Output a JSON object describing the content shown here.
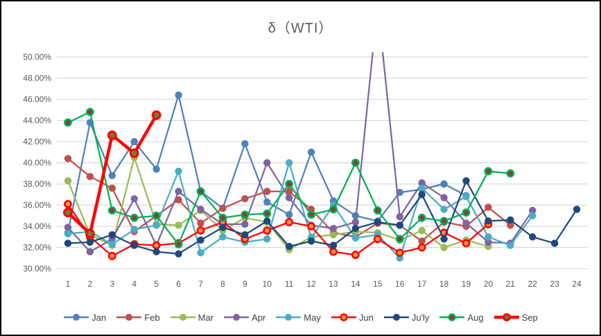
{
  "window": {
    "background": "#FFFFFF",
    "frame_border": "#000000"
  },
  "chart_data": {
    "type": "line",
    "title": "δ（WTI）",
    "xlabel": "",
    "ylabel": "",
    "ylim": [
      30,
      50
    ],
    "grid": true,
    "grid_color": "#D9D9D9",
    "axis_text_color": "#595959",
    "legend_position": "bottom",
    "x_ticks": [
      1,
      2,
      3,
      4,
      5,
      6,
      7,
      8,
      9,
      10,
      11,
      12,
      13,
      14,
      15,
      16,
      17,
      18,
      19,
      20,
      21,
      22,
      23,
      24
    ],
    "y_ticks": [
      "50.00%",
      "48.00%",
      "46.00%",
      "44.00%",
      "42.00%",
      "40.00%",
      "38.00%",
      "36.00%",
      "34.00%",
      "32.00%",
      "30.00%"
    ],
    "y_tick_values": [
      50,
      48,
      46,
      44,
      42,
      40,
      38,
      36,
      34,
      32,
      30
    ],
    "series": [
      {
        "name": "Jan",
        "color": "#4F81BD",
        "values": [
          33.4,
          43.8,
          38.8,
          42.0,
          39.4,
          46.4,
          37.3,
          35.7,
          41.8,
          36.3,
          35.1,
          41.0,
          36.4,
          35.0,
          34.5,
          37.2,
          37.5,
          38.0,
          36.9,
          null,
          null,
          null,
          null,
          null
        ]
      },
      {
        "name": "Feb",
        "color": "#C0504D",
        "values": [
          40.4,
          38.7,
          37.6,
          33.5,
          35.0,
          36.5,
          34.3,
          35.7,
          36.6,
          37.3,
          37.3,
          35.6,
          33.4,
          33.0,
          34.3,
          34.1,
          32.6,
          34.4,
          34.0,
          35.8,
          34.1,
          null,
          null,
          null
        ]
      },
      {
        "name": "Mar",
        "color": "#9BBB59",
        "values": [
          38.3,
          33.2,
          32.2,
          40.5,
          34.2,
          34.1,
          35.5,
          33.6,
          34.8,
          34.4,
          31.8,
          33.0,
          33.2,
          33.5,
          33.4,
          32.7,
          33.6,
          32.0,
          32.7,
          32.1,
          null,
          null,
          null,
          null
        ]
      },
      {
        "name": "Apr",
        "color": "#8064A2",
        "values": [
          33.9,
          31.6,
          32.8,
          36.6,
          32.2,
          37.3,
          35.6,
          34.2,
          34.2,
          40.0,
          36.7,
          34.1,
          33.8,
          34.4,
          55.0,
          34.9,
          38.1,
          36.7,
          34.3,
          32.5,
          32.4,
          35.5,
          null,
          null
        ]
      },
      {
        "name": "May",
        "color": "#4BACC6",
        "values": [
          33.3,
          33.5,
          32.3,
          33.7,
          34.1,
          39.2,
          31.5,
          33.0,
          32.5,
          32.8,
          40.0,
          32.9,
          36.0,
          32.9,
          33.2,
          31.0,
          37.6,
          35.6,
          36.8,
          33.0,
          32.2,
          35.0,
          null,
          null
        ]
      },
      {
        "name": "Jun",
        "color": "#FF0000",
        "marker_fill": "#F79646",
        "marker_ring": "#FF0000",
        "values": [
          36.1,
          33.0,
          31.2,
          32.3,
          32.2,
          32.4,
          33.6,
          34.4,
          32.8,
          33.6,
          34.4,
          34.0,
          31.6,
          31.3,
          32.8,
          31.5,
          32.0,
          33.4,
          32.4,
          34.2,
          null,
          null,
          null,
          null
        ]
      },
      {
        "name": "Ju'ly",
        "color": "#1F497D",
        "values": [
          32.4,
          32.5,
          33.2,
          32.2,
          31.6,
          31.4,
          32.7,
          33.9,
          33.2,
          34.5,
          32.1,
          32.6,
          32.2,
          33.8,
          34.4,
          34.1,
          37.0,
          32.8,
          38.3,
          34.5,
          34.6,
          33.0,
          32.4,
          35.6
        ]
      },
      {
        "name": "Aug",
        "color": "#00B050",
        "marker_fill": "#8B3A3A",
        "marker_ring": "#00B050",
        "values": [
          43.8,
          44.8,
          35.5,
          34.8,
          35.0,
          32.3,
          37.3,
          34.8,
          35.1,
          35.2,
          38.0,
          35.1,
          35.6,
          40.0,
          35.5,
          32.8,
          34.8,
          34.5,
          35.3,
          39.2,
          39.0,
          null,
          null,
          null
        ]
      },
      {
        "name": "Sep",
        "color": "#FF0000",
        "marker_fill": "#6E7F2F",
        "marker_ring": "#FF0000",
        "thick": true,
        "values": [
          35.3,
          33.3,
          42.6,
          40.9,
          44.5,
          null,
          null,
          null,
          null,
          null,
          null,
          null,
          null,
          null,
          null,
          null,
          null,
          null,
          null,
          null,
          null,
          null,
          null,
          null
        ]
      }
    ]
  }
}
